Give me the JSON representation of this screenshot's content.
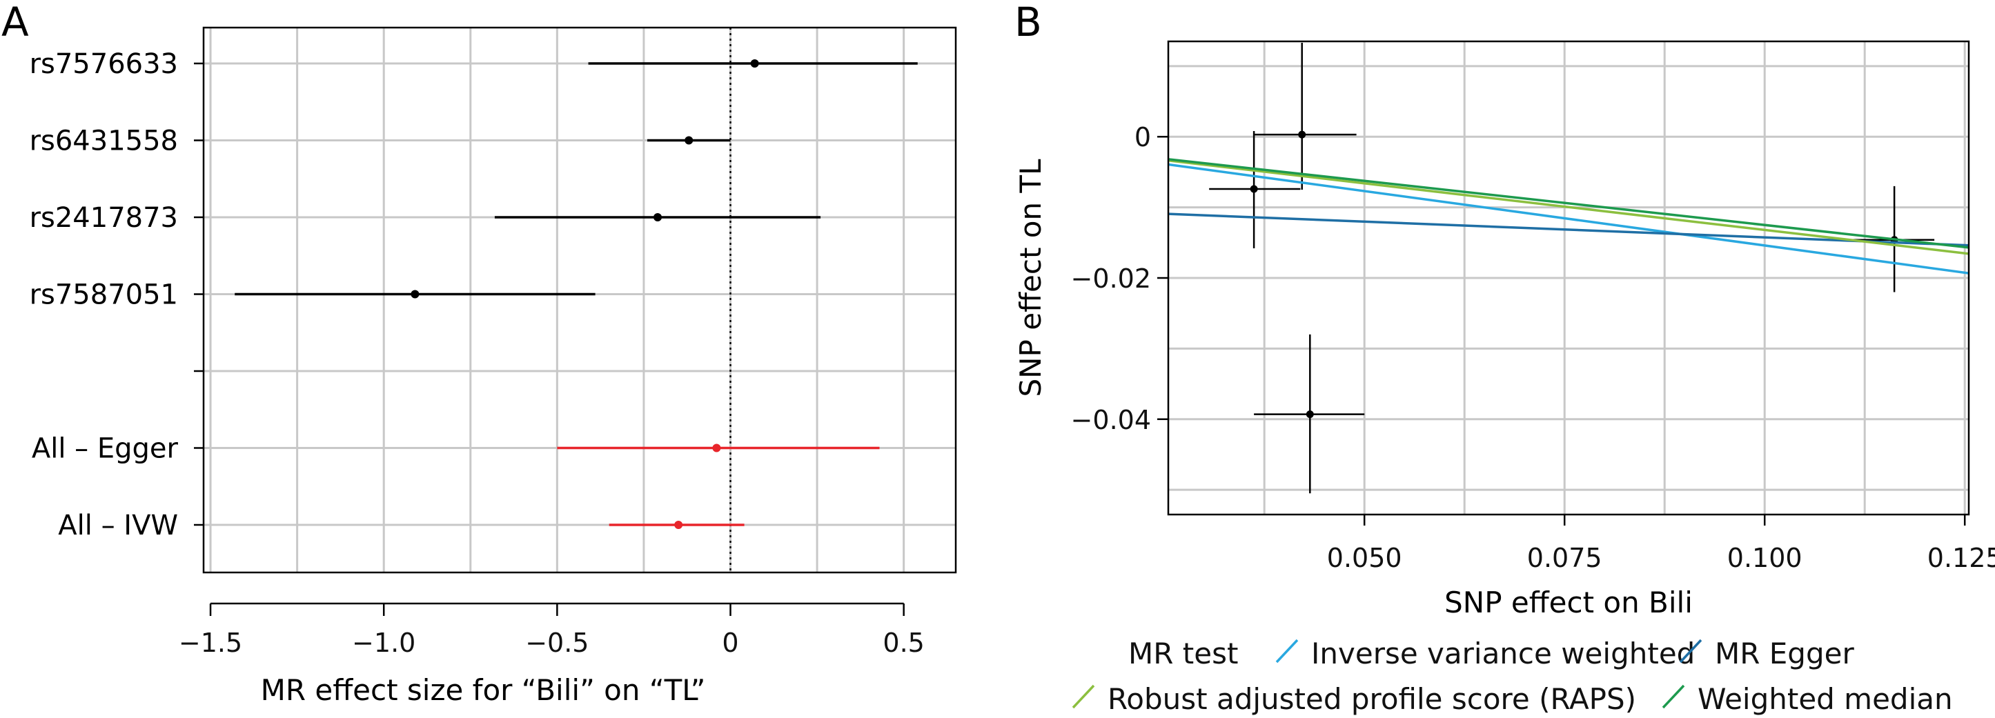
{
  "figure": {
    "panels": [
      "A",
      "B"
    ]
  },
  "chart_data": [
    {
      "type": "forest",
      "panel": "A",
      "title": "",
      "xlabel": "MR effect size for “Bili” on “TL”",
      "ylabel": "",
      "xlim": [
        -1.52,
        0.65
      ],
      "xticks": [
        -1.5,
        -1.0,
        -0.5,
        0,
        0.5
      ],
      "xtick_labels": [
        "−1.5",
        "−1.0",
        "−0.5",
        "0",
        "0.5"
      ],
      "reference_line": 0,
      "grid": true,
      "rows": [
        {
          "label": "rs7576633",
          "estimate": 0.07,
          "lower": -0.41,
          "upper": 0.54,
          "color": "#000000"
        },
        {
          "label": "rs6431558",
          "estimate": -0.12,
          "lower": -0.24,
          "upper": 0.0,
          "color": "#000000"
        },
        {
          "label": "rs2417873",
          "estimate": -0.21,
          "lower": -0.68,
          "upper": 0.26,
          "color": "#000000"
        },
        {
          "label": "rs7587051",
          "estimate": -0.91,
          "lower": -1.43,
          "upper": -0.39,
          "color": "#000000"
        },
        {
          "label": "",
          "estimate": null,
          "lower": null,
          "upper": null,
          "color": "#000000"
        },
        {
          "label": "All – Egger",
          "estimate": -0.04,
          "lower": -0.5,
          "upper": 0.43,
          "color": "#e8252b"
        },
        {
          "label": "All – IVW",
          "estimate": -0.15,
          "lower": -0.35,
          "upper": 0.04,
          "color": "#e8252b"
        }
      ]
    },
    {
      "type": "scatter",
      "panel": "B",
      "title": "",
      "xlabel": "SNP effect on Bili",
      "ylabel": "SNP effect on TL",
      "xlim": [
        0.0255,
        0.1255
      ],
      "ylim": [
        -0.0535,
        0.0135
      ],
      "xticks": [
        0.05,
        0.075,
        0.1,
        0.125
      ],
      "xtick_labels": [
        "0.050",
        "0.075",
        "0.100",
        "0.125"
      ],
      "yticks": [
        0,
        -0.02,
        -0.04
      ],
      "ytick_labels": [
        "0",
        "−0.02",
        "−0.04"
      ],
      "grid": true,
      "points": [
        {
          "x": 0.0422,
          "y": 0.0003,
          "x_lower": 0.0361,
          "x_upper": 0.049,
          "y_lower": -0.0075,
          "y_upper": 0.0133
        },
        {
          "x": 0.0362,
          "y": -0.0074,
          "x_lower": 0.0306,
          "x_upper": 0.042,
          "y_lower": -0.0158,
          "y_upper": 0.0008
        },
        {
          "x": 0.0432,
          "y": -0.0393,
          "x_lower": 0.0362,
          "x_upper": 0.05,
          "y_lower": -0.0505,
          "y_upper": -0.028
        },
        {
          "x": 0.1162,
          "y": -0.0146,
          "x_lower": 0.1102,
          "x_upper": 0.1212,
          "y_lower": -0.022,
          "y_upper": -0.007
        }
      ],
      "lines": [
        {
          "name": "Inverse variance weighted",
          "color": "#29a8e0",
          "intercept": 0,
          "slope": -0.154
        },
        {
          "name": "MR Egger",
          "color": "#1f6fa5",
          "intercept": -0.0098,
          "slope": -0.0445
        },
        {
          "name": "Robust adjusted profile score (RAPS)",
          "color": "#8cbf3f",
          "intercept": 0,
          "slope": -0.132
        },
        {
          "name": "Weighted median",
          "color": "#1d9a4e",
          "intercept": 0,
          "slope": -0.125
        }
      ],
      "legend": {
        "title": "MR test",
        "placement": "bottom",
        "entries": [
          "Inverse variance weighted",
          "MR Egger",
          "Robust adjusted profile score (RAPS)",
          "Weighted median"
        ]
      }
    }
  ]
}
